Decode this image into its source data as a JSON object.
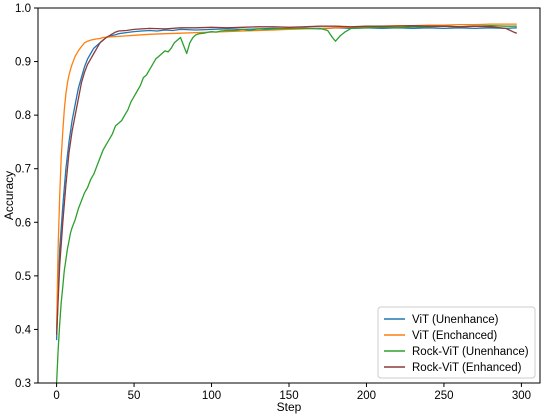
{
  "chart_data": {
    "type": "line",
    "title": "",
    "xlabel": "Step",
    "ylabel": "Accuracy",
    "xlim": [
      -12,
      312
    ],
    "ylim": [
      0.3,
      1.0
    ],
    "xticks": [
      0,
      50,
      100,
      150,
      200,
      250,
      300
    ],
    "yticks": [
      0.3,
      0.4,
      0.5,
      0.6,
      0.7,
      0.8,
      0.9,
      1.0
    ],
    "grid": false,
    "legend_position": "lower-right",
    "series": [
      {
        "name": "ViT (Unenhance)",
        "color": "#1f77b4",
        "x": [
          0,
          2,
          4,
          6,
          8,
          10,
          12,
          14,
          16,
          18,
          20,
          22,
          24,
          26,
          28,
          30,
          32,
          35,
          38,
          40,
          45,
          50,
          55,
          60,
          65,
          70,
          75,
          80,
          90,
          100,
          110,
          120,
          130,
          140,
          150,
          160,
          170,
          180,
          190,
          200,
          210,
          220,
          230,
          240,
          250,
          260,
          270,
          280,
          290,
          297
        ],
        "y": [
          0.38,
          0.55,
          0.63,
          0.7,
          0.75,
          0.79,
          0.82,
          0.85,
          0.87,
          0.89,
          0.905,
          0.915,
          0.925,
          0.93,
          0.935,
          0.94,
          0.945,
          0.948,
          0.95,
          0.952,
          0.954,
          0.956,
          0.957,
          0.958,
          0.957,
          0.959,
          0.958,
          0.96,
          0.959,
          0.96,
          0.961,
          0.96,
          0.961,
          0.962,
          0.961,
          0.962,
          0.961,
          0.963,
          0.962,
          0.963,
          0.962,
          0.963,
          0.962,
          0.963,
          0.962,
          0.963,
          0.962,
          0.963,
          0.962,
          0.963
        ]
      },
      {
        "name": "ViT (Enchanced)",
        "color": "#ff7f0e",
        "x": [
          0,
          1,
          2,
          3,
          4,
          5,
          6,
          7,
          8,
          9,
          10,
          12,
          14,
          16,
          18,
          20,
          22,
          25,
          28,
          30,
          35,
          40,
          45,
          50,
          55,
          60,
          70,
          80,
          90,
          100,
          110,
          120,
          130,
          140,
          150,
          160,
          170,
          180,
          190,
          200,
          210,
          220,
          230,
          240,
          250,
          260,
          270,
          280,
          290,
          297
        ],
        "y": [
          0.4,
          0.55,
          0.65,
          0.72,
          0.77,
          0.81,
          0.84,
          0.86,
          0.875,
          0.885,
          0.895,
          0.91,
          0.92,
          0.928,
          0.935,
          0.938,
          0.94,
          0.942,
          0.943,
          0.945,
          0.946,
          0.947,
          0.948,
          0.949,
          0.95,
          0.951,
          0.952,
          0.953,
          0.954,
          0.955,
          0.956,
          0.957,
          0.958,
          0.959,
          0.96,
          0.961,
          0.962,
          0.963,
          0.964,
          0.965,
          0.966,
          0.967,
          0.967,
          0.968,
          0.968,
          0.969,
          0.969,
          0.97,
          0.97,
          0.97
        ]
      },
      {
        "name": "Rock-ViT (Unenhance)",
        "color": "#2ca02c",
        "x": [
          0,
          1,
          2,
          3,
          4,
          5,
          6,
          7,
          8,
          9,
          10,
          12,
          14,
          16,
          18,
          20,
          22,
          24,
          26,
          28,
          30,
          32,
          34,
          36,
          38,
          40,
          42,
          44,
          46,
          48,
          50,
          52,
          54,
          56,
          58,
          60,
          62,
          64,
          66,
          68,
          70,
          72,
          74,
          76,
          78,
          80,
          82,
          84,
          86,
          88,
          90,
          92,
          95,
          98,
          100,
          103,
          106,
          110,
          115,
          120,
          125,
          130,
          135,
          140,
          150,
          160,
          170,
          175,
          178,
          180,
          183,
          186,
          190,
          200,
          210,
          220,
          230,
          240,
          250,
          260,
          270,
          280,
          290,
          297
        ],
        "y": [
          0.3,
          0.36,
          0.41,
          0.45,
          0.48,
          0.51,
          0.53,
          0.55,
          0.565,
          0.58,
          0.59,
          0.605,
          0.625,
          0.64,
          0.655,
          0.665,
          0.68,
          0.69,
          0.705,
          0.72,
          0.735,
          0.745,
          0.755,
          0.765,
          0.78,
          0.785,
          0.79,
          0.8,
          0.81,
          0.825,
          0.835,
          0.845,
          0.855,
          0.87,
          0.875,
          0.885,
          0.895,
          0.905,
          0.91,
          0.915,
          0.92,
          0.918,
          0.925,
          0.935,
          0.94,
          0.945,
          0.93,
          0.915,
          0.935,
          0.945,
          0.95,
          0.952,
          0.953,
          0.955,
          0.956,
          0.955,
          0.957,
          0.958,
          0.958,
          0.96,
          0.958,
          0.961,
          0.96,
          0.961,
          0.962,
          0.962,
          0.962,
          0.958,
          0.945,
          0.938,
          0.948,
          0.955,
          0.962,
          0.963,
          0.964,
          0.963,
          0.965,
          0.965,
          0.966,
          0.965,
          0.966,
          0.967,
          0.966,
          0.966
        ]
      },
      {
        "name": "Rock-ViT (Enhanced)",
        "color": "#8c3a3a",
        "x": [
          0,
          2,
          4,
          6,
          8,
          10,
          12,
          14,
          16,
          18,
          20,
          22,
          24,
          26,
          28,
          30,
          32,
          35,
          38,
          40,
          45,
          50,
          55,
          60,
          70,
          80,
          90,
          100,
          110,
          120,
          130,
          140,
          150,
          160,
          170,
          180,
          190,
          200,
          210,
          220,
          230,
          240,
          250,
          260,
          270,
          280,
          290,
          295,
          297
        ],
        "y": [
          0.39,
          0.52,
          0.6,
          0.67,
          0.73,
          0.77,
          0.8,
          0.83,
          0.86,
          0.88,
          0.895,
          0.905,
          0.915,
          0.925,
          0.935,
          0.94,
          0.945,
          0.95,
          0.955,
          0.957,
          0.958,
          0.96,
          0.961,
          0.962,
          0.961,
          0.963,
          0.963,
          0.964,
          0.963,
          0.964,
          0.965,
          0.965,
          0.964,
          0.965,
          0.966,
          0.966,
          0.965,
          0.966,
          0.966,
          0.966,
          0.967,
          0.966,
          0.966,
          0.965,
          0.966,
          0.965,
          0.962,
          0.955,
          0.953
        ]
      }
    ]
  }
}
